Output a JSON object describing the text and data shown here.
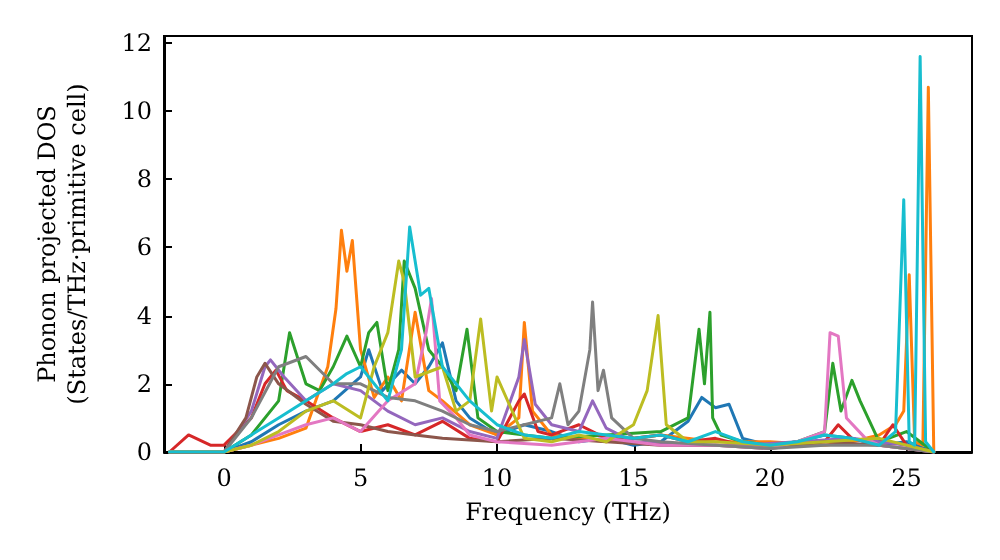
{
  "chart_data": {
    "type": "line",
    "xlabel": "Frequency (THz)",
    "ylabel": "Phonon projected DOS\n(States/THz·primitive cell)",
    "xlim": [
      -2.2,
      27.4
    ],
    "ylim": [
      0,
      12.2
    ],
    "xticks": [
      0,
      5,
      10,
      15,
      20,
      25
    ],
    "yticks": [
      0,
      2,
      4,
      6,
      8,
      10,
      12
    ],
    "grid": false,
    "marker": "none",
    "line_style": "solid",
    "series": [
      {
        "color": "#1f77b4",
        "x": [
          -2,
          0,
          1,
          2,
          3,
          4,
          5,
          5.3,
          5.8,
          6.5,
          7,
          7.5,
          8,
          8.5,
          9,
          10,
          11,
          12,
          13,
          14,
          15,
          16,
          17,
          17.5,
          18,
          18.5,
          19,
          20,
          21,
          22,
          23,
          24,
          25,
          26
        ],
        "values": [
          0,
          0,
          0.3,
          0.8,
          1.2,
          1.5,
          2.2,
          3,
          1.8,
          2.4,
          2,
          2.5,
          3.2,
          1.5,
          1,
          0.5,
          0.8,
          0.6,
          0.3,
          0.4,
          0.2,
          0.3,
          0.9,
          1.6,
          1.3,
          1.4,
          0.4,
          0.2,
          0.3,
          0.5,
          0.4,
          0.2,
          0.3,
          0
        ]
      },
      {
        "color": "#ff7f0e",
        "x": [
          -2,
          0,
          1,
          2,
          3,
          3.8,
          4.1,
          4.3,
          4.5,
          4.7,
          5,
          5.5,
          6,
          6.5,
          7,
          7.5,
          8,
          9,
          10,
          10.8,
          11,
          11.3,
          12,
          14,
          16,
          18,
          20,
          22,
          23,
          24,
          24.6,
          24.9,
          25.1,
          25.3,
          25.6,
          25.8,
          26
        ],
        "values": [
          0,
          0,
          0.2,
          0.4,
          0.7,
          2.5,
          4.2,
          6.5,
          5.3,
          6.2,
          3,
          1.6,
          2.2,
          1.5,
          4.1,
          1.8,
          1.5,
          0.8,
          0.5,
          1,
          3.8,
          1.2,
          0.5,
          0.3,
          0.5,
          0.3,
          0.3,
          0.2,
          0.3,
          0.5,
          0.8,
          1.2,
          5.2,
          0.3,
          0.2,
          10.7,
          0
        ]
      },
      {
        "color": "#2ca02c",
        "x": [
          -2,
          0,
          1,
          2,
          2.4,
          3,
          3.5,
          4,
          4.5,
          5,
          5.3,
          5.6,
          6,
          6.4,
          6.6,
          7,
          7.5,
          8,
          8.5,
          8.9,
          9.3,
          10,
          12,
          14,
          16,
          17,
          17.4,
          17.6,
          17.8,
          17.9,
          18.2,
          19,
          20,
          21,
          22,
          22.3,
          22.6,
          23,
          23.3,
          24,
          25,
          26
        ],
        "values": [
          0,
          0,
          0.5,
          1.5,
          3.5,
          2,
          1.8,
          2.5,
          3.4,
          2.5,
          3.5,
          3.8,
          1.8,
          3,
          5.6,
          4.8,
          3,
          2.5,
          1.8,
          3.6,
          1,
          0.6,
          0.4,
          0.5,
          0.6,
          1,
          3.6,
          2,
          4.1,
          1,
          0.5,
          0.3,
          0.2,
          0.3,
          0.6,
          2.6,
          1.2,
          2.1,
          1.5,
          0.3,
          0.6,
          0
        ]
      },
      {
        "color": "#d62728",
        "x": [
          -2,
          -1.3,
          -0.5,
          0,
          1,
          1.5,
          1.9,
          2.3,
          3,
          4,
          5,
          6,
          7,
          8,
          9,
          10,
          10.8,
          11,
          11.5,
          12,
          13,
          14,
          15,
          16,
          17,
          18,
          19,
          20,
          22,
          22.5,
          23,
          24,
          24.5,
          25,
          26
        ],
        "values": [
          0,
          0.5,
          0.2,
          0.2,
          1,
          2,
          2.4,
          1.8,
          1.5,
          1,
          0.6,
          0.8,
          0.5,
          0.9,
          0.4,
          0.3,
          1.5,
          1.7,
          0.6,
          0.5,
          0.8,
          0.4,
          0.4,
          0.5,
          0.3,
          0.4,
          0.2,
          0.2,
          0.3,
          0.8,
          0.4,
          0.2,
          0.8,
          0.2,
          0
        ]
      },
      {
        "color": "#9467bd",
        "x": [
          -2,
          0,
          1,
          1.5,
          1.7,
          2.2,
          3,
          4,
          5,
          6,
          7,
          8,
          9,
          10,
          10.8,
          11,
          11.4,
          12,
          13,
          13.5,
          14,
          15,
          17,
          19,
          21,
          23,
          25,
          26
        ],
        "values": [
          0,
          0,
          1.2,
          2.5,
          2.7,
          2.2,
          1.5,
          2,
          1.8,
          1.2,
          0.8,
          1,
          0.6,
          0.4,
          2.2,
          3.3,
          1.4,
          0.8,
          0.6,
          1.5,
          0.7,
          0.3,
          0.2,
          0.2,
          0.3,
          0.4,
          0.2,
          0
        ]
      },
      {
        "color": "#8c564b",
        "x": [
          -2,
          0,
          0.8,
          1.2,
          1.5,
          2,
          3,
          4,
          5,
          6,
          7,
          8,
          10,
          12,
          14,
          16,
          18,
          20,
          22,
          24,
          26
        ],
        "values": [
          0,
          0,
          1,
          2.2,
          2.6,
          2,
          1.4,
          0.9,
          0.8,
          0.6,
          0.5,
          0.4,
          0.3,
          0.4,
          0.3,
          0.2,
          0.2,
          0.1,
          0.3,
          0.2,
          0
        ]
      },
      {
        "color": "#e377c2",
        "x": [
          -2,
          0,
          1,
          2,
          3,
          4,
          5,
          6,
          7,
          7.4,
          7.6,
          7.9,
          8.5,
          9,
          10,
          12,
          14,
          16,
          18,
          20,
          21,
          22,
          22.2,
          22.5,
          22.8,
          23.5,
          24,
          25,
          26
        ],
        "values": [
          0,
          0,
          0.2,
          0.5,
          0.8,
          1,
          0.6,
          1.5,
          2,
          3.5,
          4.5,
          1.5,
          1,
          0.5,
          0.3,
          0.2,
          0.4,
          0.2,
          0.2,
          0.1,
          0.3,
          0.6,
          3.5,
          3.4,
          1,
          0.4,
          0.2,
          0.1,
          0
        ]
      },
      {
        "color": "#7f7f7f",
        "x": [
          -2,
          0,
          1,
          2,
          3,
          4,
          5,
          6,
          7,
          8,
          9,
          10,
          11,
          12,
          12.3,
          12.6,
          13,
          13.4,
          13.5,
          13.7,
          13.9,
          14.2,
          15,
          16,
          18,
          20,
          22,
          24,
          26
        ],
        "values": [
          0,
          0,
          1,
          2.5,
          2.8,
          2,
          2,
          1.6,
          1.5,
          1.2,
          0.8,
          0.6,
          0.8,
          1,
          2,
          0.8,
          1.2,
          3,
          4.4,
          1.8,
          2.4,
          1,
          0.4,
          0.3,
          0.2,
          0.1,
          0.2,
          0.2,
          0
        ]
      },
      {
        "color": "#bcbd22",
        "x": [
          -2,
          0,
          1,
          2,
          3,
          4,
          5,
          5.5,
          6,
          6.4,
          6.6,
          7,
          8,
          8.5,
          9,
          9.4,
          9.8,
          10,
          11,
          12,
          13,
          14,
          15,
          15.5,
          15.9,
          16.2,
          17,
          18,
          20,
          22,
          24,
          26
        ],
        "values": [
          0,
          0,
          0.2,
          0.6,
          1.2,
          1.5,
          1,
          2.5,
          3.5,
          5.6,
          5,
          2.2,
          2.5,
          1.2,
          1.5,
          3.9,
          1.2,
          2.2,
          0.4,
          0.3,
          0.5,
          0.3,
          0.8,
          1.8,
          4,
          0.8,
          0.3,
          0.3,
          0.2,
          0.3,
          0.4,
          0
        ]
      },
      {
        "color": "#17becf",
        "x": [
          -2,
          0,
          1,
          2,
          3,
          4,
          4.5,
          5,
          5.5,
          6,
          6.5,
          6.8,
          7.2,
          7.5,
          8,
          9,
          10,
          11,
          12,
          13,
          14,
          15,
          16,
          17,
          18,
          19,
          20,
          21,
          22,
          23,
          24,
          24.6,
          24.9,
          25.1,
          25.3,
          25.5,
          25.7,
          26
        ],
        "values": [
          0,
          0,
          0.5,
          1,
          1.5,
          2,
          2.3,
          2.5,
          2,
          1.5,
          3,
          6.6,
          4.6,
          4.8,
          2.5,
          1.5,
          0.8,
          0.5,
          0.4,
          0.6,
          0.5,
          0.4,
          0.5,
          0.3,
          0.6,
          0.3,
          0.2,
          0.3,
          0.5,
          0.4,
          0.2,
          0.6,
          7.4,
          0.3,
          0.2,
          11.6,
          0.3,
          0
        ]
      }
    ]
  }
}
